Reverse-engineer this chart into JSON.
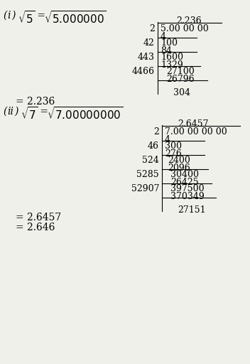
{
  "bg_color": "#f0f0eb",
  "sqrt1": {
    "quotient": "2.236",
    "dividend": "5.00 00 00",
    "rows": [
      {
        "divisor": "2",
        "top": "5.00 00 00",
        "sub": "4",
        "sep_line": true
      },
      {
        "divisor": "42",
        "top": "100",
        "sub": "84",
        "sep_line": true
      },
      {
        "divisor": "443",
        "top": "1600",
        "sub": "1329",
        "sep_line": true
      },
      {
        "divisor": "4466",
        "top": "27100",
        "sub": "26796",
        "sep_line": true
      }
    ],
    "remainder": "304"
  },
  "sqrt2": {
    "quotient": "2.6457",
    "dividend": "7.00 00 00 00",
    "rows": [
      {
        "divisor": "2",
        "top": "7.00 00 00 00",
        "sub": "4",
        "sep_line": true
      },
      {
        "divisor": "46",
        "top": "300",
        "sub": "276",
        "sep_line": true
      },
      {
        "divisor": "524",
        "top": "2400",
        "sub": "2096",
        "sep_line": true
      },
      {
        "divisor": "5285",
        "top": "30400",
        "sub": "26425",
        "sep_line": true
      },
      {
        "divisor": "52907",
        "top": "397500",
        "sub": "370349",
        "sep_line": true
      }
    ],
    "remainder": "27151"
  }
}
